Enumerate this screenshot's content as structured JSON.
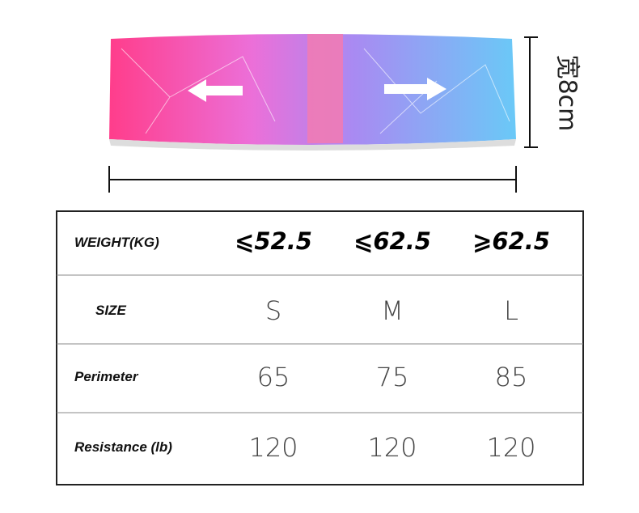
{
  "dimension_label": "宽8cm",
  "table": {
    "rows": [
      [
        "WEIGHT(KG)",
        "⩽52.5",
        "⩽62.5",
        "⩾62.5"
      ],
      [
        "SIZE",
        "S",
        "M",
        "L"
      ],
      [
        "Perimeter",
        "65",
        "75",
        "85"
      ],
      [
        "Resistance (lb)",
        "120",
        "120",
        "120"
      ]
    ]
  }
}
